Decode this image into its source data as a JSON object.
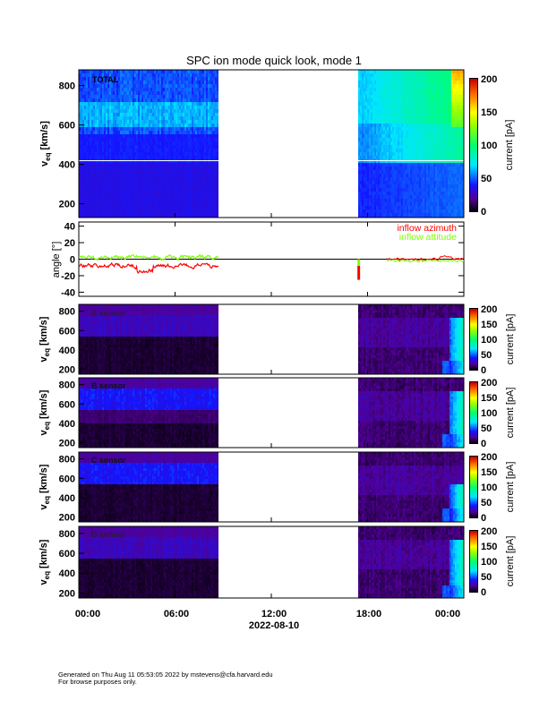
{
  "chart_data": {
    "type": "heatmap",
    "title": "SPC ion mode quick look, mode 1",
    "xlabel": "2022-08-10",
    "x_ticks": [
      "00:00",
      "06:00",
      "12:00",
      "18:00",
      "00:00"
    ],
    "x_range_hours": [
      0,
      24
    ],
    "data_intervals_hours": [
      [
        0,
        8.7
      ],
      [
        17.4,
        24
      ]
    ],
    "panels": [
      {
        "name": "TOTAL",
        "label": "TOTAL",
        "ylabel": "v",
        "ylabel_sub": "eq",
        "ylabel_unit": "[km/s]",
        "yticks": [
          200,
          400,
          600,
          800
        ],
        "ylim": [
          130,
          880
        ],
        "colorbar": {
          "label": "current [pA]",
          "ticks": [
            0,
            50,
            100,
            150,
            200
          ],
          "range": [
            0,
            200
          ]
        }
      },
      {
        "name": "angle",
        "ylabel": "angle [°]",
        "yticks": [
          -40,
          -20,
          0,
          20,
          40
        ],
        "ylim": [
          -45,
          45
        ],
        "series": [
          {
            "name": "inflow azimuth",
            "color": "#ff0000",
            "typical_value": -8
          },
          {
            "name": "inflow attitude",
            "color": "#7fff00",
            "typical_value": 2
          }
        ]
      },
      {
        "name": "A",
        "label": "A sensor",
        "ylabel": "v",
        "ylabel_sub": "eq",
        "ylabel_unit": "[km/s]",
        "yticks": [
          200,
          400,
          600,
          800
        ],
        "ylim": [
          150,
          870
        ],
        "colorbar": {
          "label": "current [pA]",
          "ticks": [
            0,
            50,
            100,
            150,
            200
          ],
          "range": [
            0,
            200
          ]
        }
      },
      {
        "name": "B",
        "label": "B sensor",
        "ylabel": "v",
        "ylabel_sub": "eq",
        "ylabel_unit": "[km/s]",
        "yticks": [
          200,
          400,
          600,
          800
        ],
        "ylim": [
          150,
          870
        ],
        "colorbar": {
          "label": "current [pA]",
          "ticks": [
            0,
            50,
            100,
            150,
            200
          ],
          "range": [
            0,
            200
          ]
        }
      },
      {
        "name": "C",
        "label": "C sensor",
        "ylabel": "v",
        "ylabel_sub": "eq",
        "ylabel_unit": "[km/s]",
        "yticks": [
          200,
          400,
          600,
          800
        ],
        "ylim": [
          150,
          870
        ],
        "colorbar": {
          "label": "current [pA]",
          "ticks": [
            0,
            50,
            100,
            150,
            200
          ],
          "range": [
            0,
            200
          ]
        }
      },
      {
        "name": "D",
        "label": "D sensor",
        "ylabel": "v",
        "ylabel_sub": "eq",
        "ylabel_unit": "[km/s]",
        "yticks": [
          200,
          400,
          600,
          800
        ],
        "ylim": [
          150,
          870
        ],
        "colorbar": {
          "label": "current [pA]",
          "ticks": [
            0,
            50,
            100,
            150,
            200
          ],
          "range": [
            0,
            200
          ]
        }
      }
    ]
  },
  "footer": {
    "line1": "Generated on Thu Aug 11 05:53:05 2022 by mstevens@cfa.harvard.edu",
    "line2": "For browse purposes only."
  }
}
